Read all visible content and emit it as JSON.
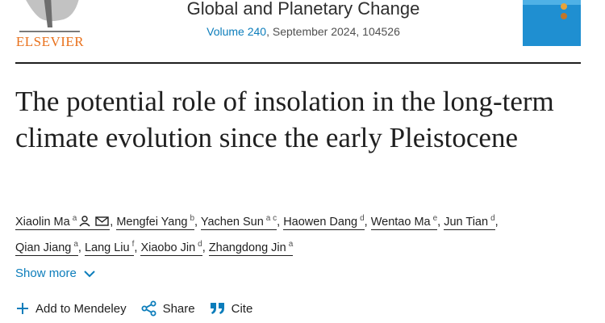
{
  "header": {
    "publisher": "ELSEVIER",
    "journal": "Global and Planetary Change",
    "volume": "Volume 240",
    "issue_info": ", September 2024, 104526"
  },
  "article": {
    "title": "The potential role of insolation in the long-term climate evolution since the early Pleistocene",
    "author_separator": ",",
    "authors": [
      {
        "name": "Xiaolin Ma",
        "affiliations": "a"
      },
      {
        "name": "Mengfei Yang",
        "affiliations": "b"
      },
      {
        "name": "Yachen Sun",
        "affiliations": "a c"
      },
      {
        "name": "Haowen Dang",
        "affiliations": "d"
      },
      {
        "name": "Wentao Ma",
        "affiliations": "e"
      },
      {
        "name": "Jun Tian",
        "affiliations": "d"
      },
      {
        "name": "Qian Jiang",
        "affiliations": "a"
      },
      {
        "name": "Lang Liu",
        "affiliations": "f"
      },
      {
        "name": "Xiaobo Jin",
        "affiliations": "d"
      },
      {
        "name": "Zhangdong Jin",
        "affiliations": "a"
      }
    ]
  },
  "show_more": "Show more",
  "actions": [
    "Add to Mendeley",
    "Share",
    "Cite"
  ]
}
